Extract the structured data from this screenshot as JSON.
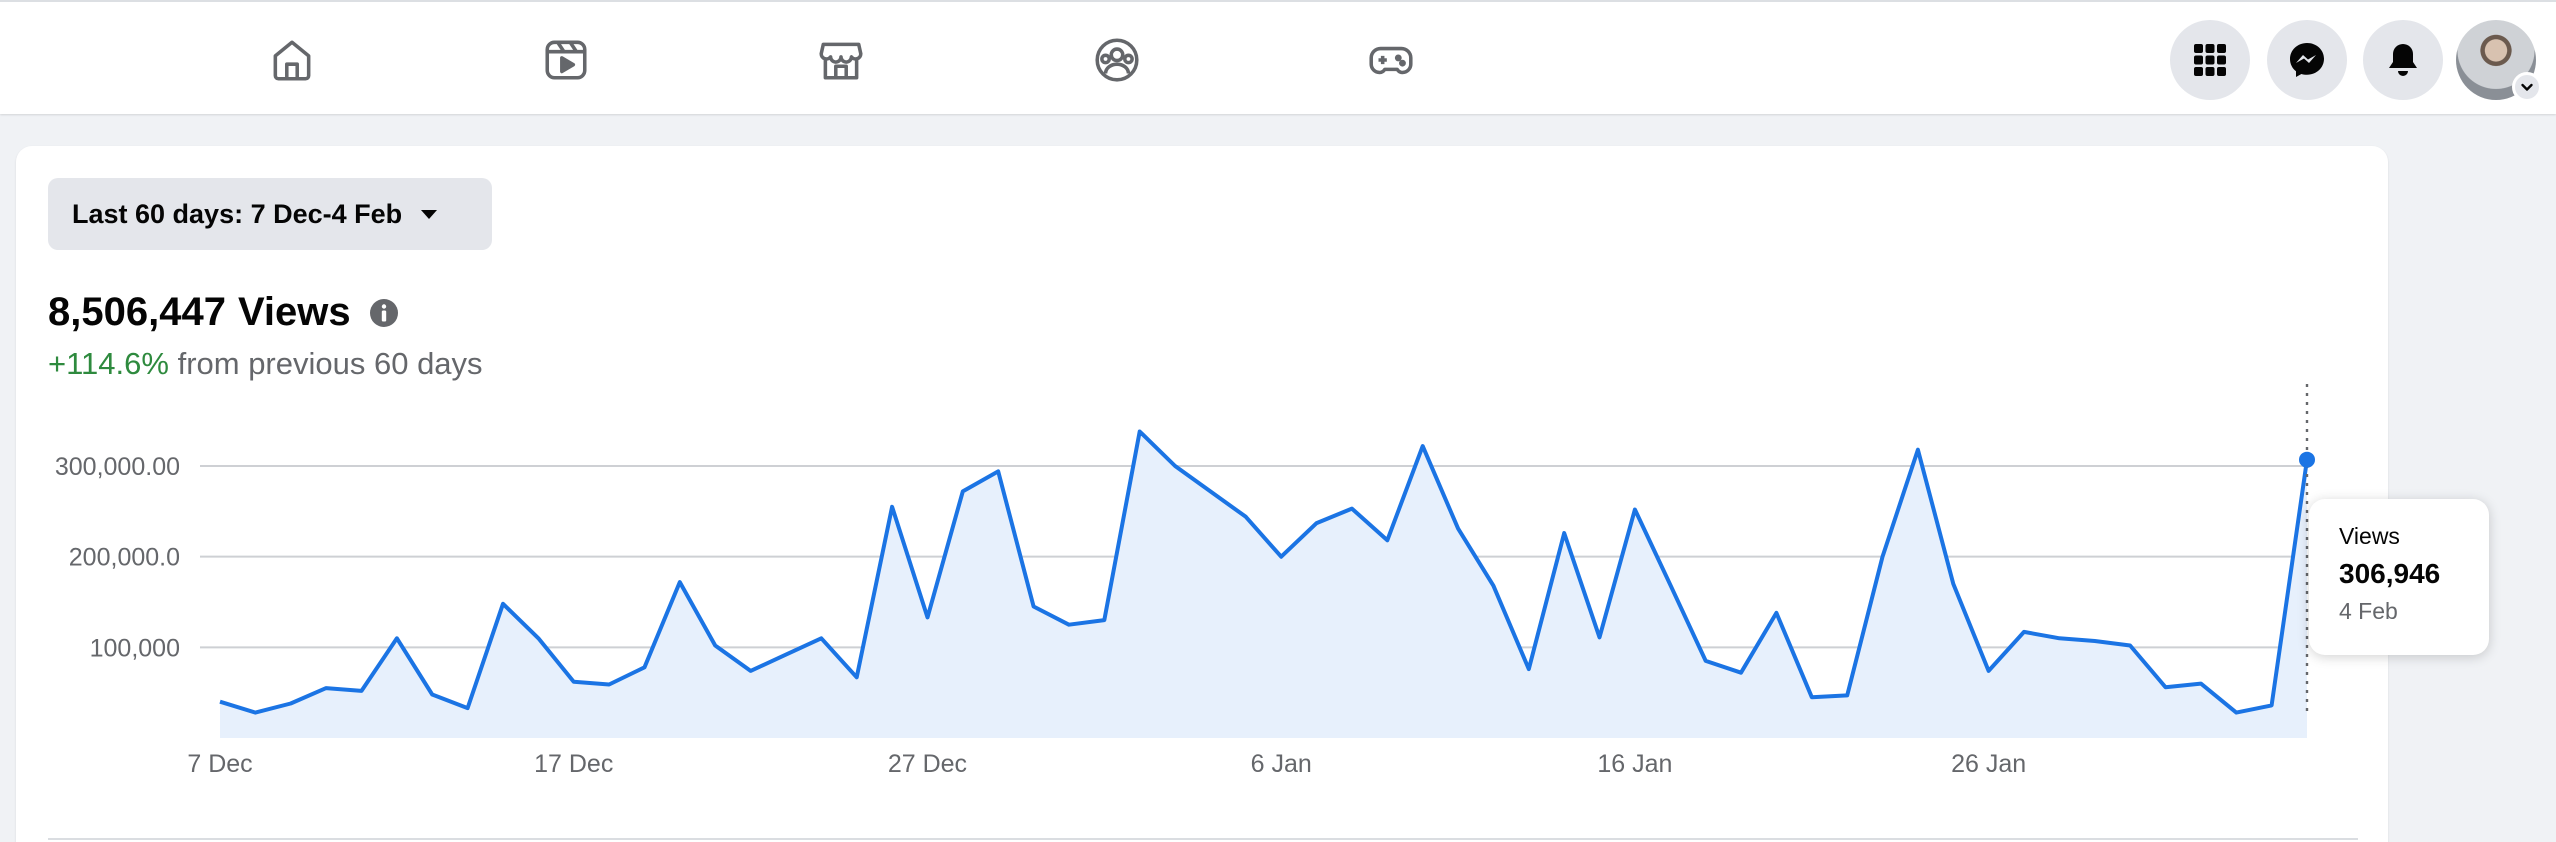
{
  "nav": {
    "items": [
      {
        "name": "home",
        "icon": "home-icon"
      },
      {
        "name": "video",
        "icon": "video-play-icon"
      },
      {
        "name": "marketplace",
        "icon": "storefront-icon"
      },
      {
        "name": "groups",
        "icon": "groups-icon"
      },
      {
        "name": "gaming",
        "icon": "gamepad-icon"
      }
    ],
    "right_buttons": [
      {
        "name": "menu",
        "icon": "grid-menu-icon"
      },
      {
        "name": "messenger",
        "icon": "messenger-icon"
      },
      {
        "name": "notifications",
        "icon": "bell-icon"
      }
    ],
    "avatar": {
      "icon": "avatar",
      "badge_icon": "chevron-down-icon"
    }
  },
  "filter": {
    "range_label": "Last 60 days: 7 Dec-4 Feb"
  },
  "summary": {
    "total_views": "8,506,447",
    "views_word": "Views",
    "delta_pct": "+114.6%",
    "delta_text": "from previous 60 days"
  },
  "tooltip": {
    "label": "Views",
    "value": "306,946",
    "date": "4 Feb"
  },
  "colors": {
    "line": "#1b74e4",
    "fill": "#e7f0fc",
    "positive": "#2e8a3e",
    "grid": "#ced0d4"
  },
  "chart_data": {
    "type": "area",
    "x_start": "7 Dec",
    "x": [
      "7 Dec",
      "8 Dec",
      "9 Dec",
      "10 Dec",
      "11 Dec",
      "12 Dec",
      "13 Dec",
      "14 Dec",
      "15 Dec",
      "16 Dec",
      "17 Dec",
      "18 Dec",
      "19 Dec",
      "20 Dec",
      "21 Dec",
      "22 Dec",
      "23 Dec",
      "24 Dec",
      "25 Dec",
      "26 Dec",
      "27 Dec",
      "28 Dec",
      "29 Dec",
      "30 Dec",
      "31 Dec",
      "1 Jan",
      "2 Jan",
      "3 Jan",
      "4 Jan",
      "5 Jan",
      "6 Jan",
      "7 Jan",
      "8 Jan",
      "9 Jan",
      "10 Jan",
      "11 Jan",
      "12 Jan",
      "13 Jan",
      "14 Jan",
      "15 Jan",
      "16 Jan",
      "17 Jan",
      "18 Jan",
      "19 Jan",
      "20 Jan",
      "21 Jan",
      "22 Jan",
      "23 Jan",
      "24 Jan",
      "25 Jan",
      "26 Jan",
      "27 Jan",
      "28 Jan",
      "29 Jan",
      "30 Jan",
      "31 Jan",
      "1 Feb",
      "2 Feb",
      "3 Feb",
      "4 Feb"
    ],
    "series": [
      {
        "name": "Views",
        "values": [
          40000,
          28000,
          38000,
          55000,
          52000,
          110000,
          48000,
          33000,
          148000,
          110000,
          62000,
          59000,
          78000,
          172000,
          102000,
          74000,
          92000,
          110000,
          67000,
          255000,
          133000,
          272000,
          294000,
          145000,
          125000,
          130000,
          338000,
          300000,
          272000,
          244000,
          200000,
          237000,
          253000,
          218000,
          322000,
          231000,
          168000,
          76000,
          226000,
          111000,
          252000,
          169000,
          85000,
          72000,
          138000,
          45000,
          47000,
          200000,
          318000,
          170000,
          74000,
          117000,
          110000,
          107000,
          102000,
          56000,
          60000,
          28000,
          36000,
          306946
        ]
      }
    ],
    "y_ticks": [
      100000,
      200000,
      300000
    ],
    "y_tick_labels": [
      "100,000",
      "200,000.0",
      "300,000.00"
    ],
    "x_tick_labels": [
      "7 Dec",
      "17 Dec",
      "27 Dec",
      "6 Jan",
      "16 Jan",
      "26 Jan"
    ],
    "x_tick_indices": [
      0,
      10,
      20,
      30,
      40,
      50
    ],
    "ylim": [
      0,
      335000
    ],
    "grid": true,
    "highlight_index": 59
  }
}
